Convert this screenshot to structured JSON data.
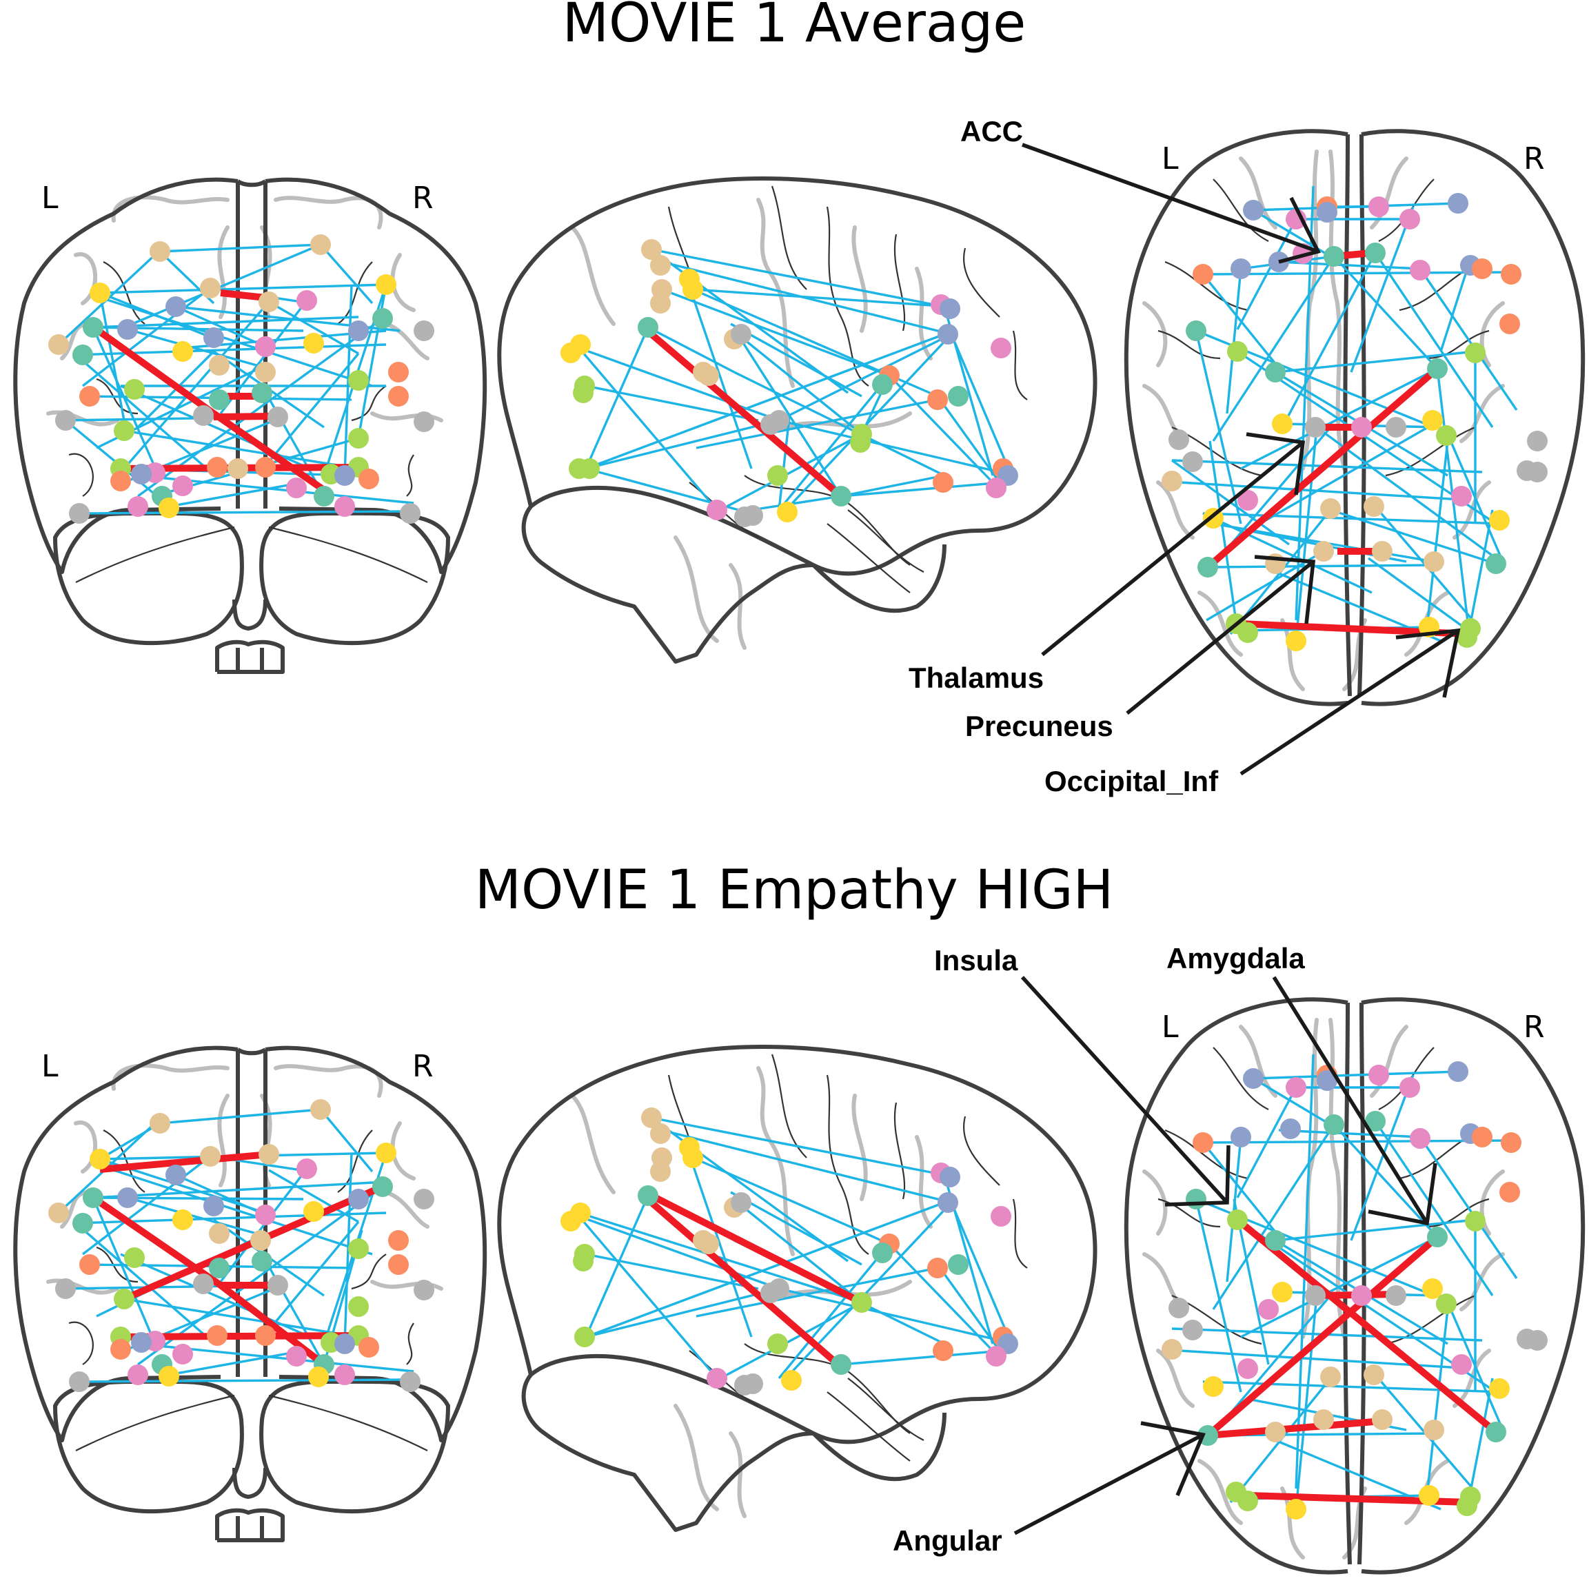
{
  "panels": [
    {
      "title": "MOVIE 1 Average",
      "views": {
        "left_label": "L",
        "right_label": "R"
      },
      "callouts": [
        "ACC",
        "Thalamus",
        "Precuneus",
        "Occipital_Inf"
      ]
    },
    {
      "title": "MOVIE 1 Empathy HIGH",
      "views": {
        "left_label": "L",
        "right_label": "R"
      },
      "callouts": [
        "Insula",
        "Amygdala",
        "Angular"
      ]
    }
  ],
  "colors": {
    "regular_edge": "#1db4e6",
    "strong_edge": "#ee1b24",
    "node_palette": [
      "#66c2a5",
      "#fc8d62",
      "#8da0cb",
      "#e78ac3",
      "#a6d854",
      "#ffd92f",
      "#e5c494",
      "#b3b3b3"
    ]
  }
}
